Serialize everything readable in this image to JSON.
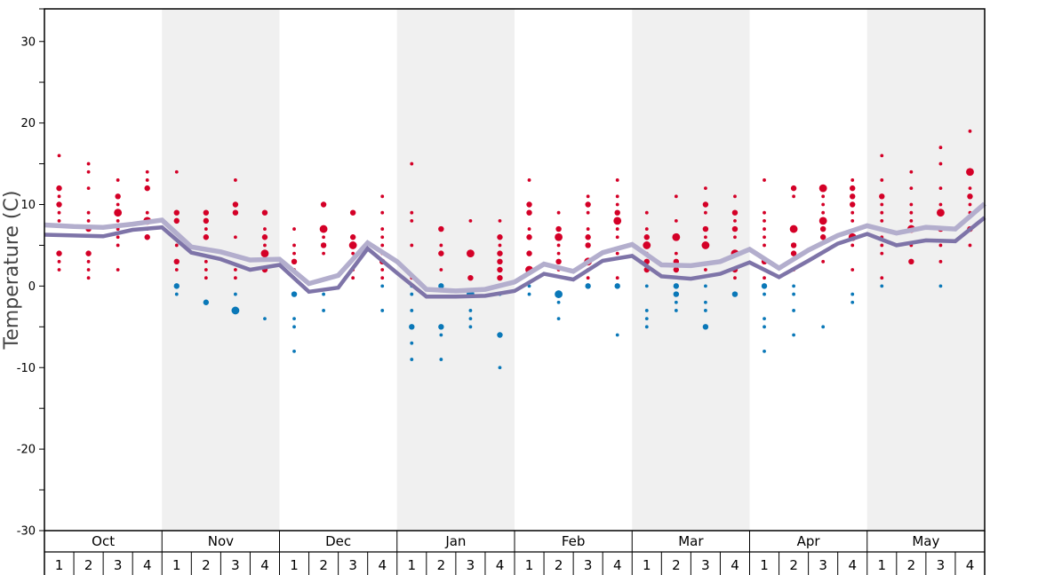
{
  "chart_data": {
    "type": "line",
    "title": "",
    "ylabel": "Temperature (C)",
    "xlabel": "",
    "ylim": [
      -30,
      34
    ],
    "yticks": [
      -30,
      -20,
      -10,
      0,
      10,
      20,
      30
    ],
    "grid": false,
    "months": [
      "Oct",
      "Nov",
      "Dec",
      "Jan",
      "Feb",
      "Mar",
      "Apr",
      "May"
    ],
    "weeks": [
      "1",
      "2",
      "3",
      "4"
    ],
    "colors": {
      "warm": "#d40027",
      "cold": "#0a78b8",
      "light_line": "#b3aecd",
      "dark_line": "#7e74a8",
      "band": "#f0f0f0"
    },
    "series": [
      {
        "name": "light",
        "values": [
          7.5,
          7.3,
          7.2,
          7.6,
          8.1,
          4.8,
          4.2,
          3.2,
          3.3,
          0.3,
          1.3,
          5.3,
          3.0,
          -0.4,
          -0.6,
          -0.4,
          0.5,
          2.7,
          1.8,
          4.1,
          5.1,
          2.6,
          2.5,
          3.0,
          4.5,
          2.2,
          4.4,
          6.2,
          7.4,
          6.5,
          7.2,
          7.0,
          10.1
        ]
      },
      {
        "name": "dark",
        "values": [
          6.3,
          6.2,
          6.1,
          6.9,
          7.2,
          4.1,
          3.3,
          2.0,
          2.6,
          -0.7,
          -0.2,
          4.6,
          1.6,
          -1.3,
          -1.3,
          -1.2,
          -0.6,
          1.5,
          0.8,
          3.1,
          3.7,
          1.2,
          0.9,
          1.5,
          2.9,
          1.1,
          3.1,
          5.2,
          6.4,
          5.0,
          5.6,
          5.5,
          8.4
        ]
      }
    ],
    "observations": [
      [
        [
          16,
          1
        ],
        [
          12,
          2
        ],
        [
          11,
          1
        ],
        [
          10,
          2
        ],
        [
          9,
          1
        ],
        [
          8,
          1
        ],
        [
          4,
          2
        ],
        [
          3,
          1
        ],
        [
          2,
          1
        ]
      ],
      [
        [
          15,
          1
        ],
        [
          14,
          1
        ],
        [
          12,
          1
        ],
        [
          9,
          1
        ],
        [
          8,
          1
        ],
        [
          7,
          2
        ],
        [
          4,
          2
        ],
        [
          3,
          1
        ],
        [
          2,
          1
        ],
        [
          1,
          1
        ]
      ],
      [
        [
          13,
          1
        ],
        [
          11,
          2
        ],
        [
          10,
          1
        ],
        [
          9,
          3
        ],
        [
          8,
          1
        ],
        [
          7,
          1
        ],
        [
          6,
          1
        ],
        [
          5,
          1
        ],
        [
          2,
          1
        ]
      ],
      [
        [
          14,
          1
        ],
        [
          13,
          1
        ],
        [
          12,
          2
        ],
        [
          9,
          1
        ],
        [
          8,
          3
        ],
        [
          7,
          1
        ],
        [
          6,
          2
        ]
      ],
      [
        [
          14,
          1
        ],
        [
          9,
          2
        ],
        [
          8,
          2
        ],
        [
          5,
          1
        ],
        [
          3,
          2
        ],
        [
          2,
          1
        ],
        [
          0,
          2
        ],
        [
          -1,
          1
        ]
      ],
      [
        [
          9,
          2
        ],
        [
          8,
          2
        ],
        [
          7,
          1
        ],
        [
          6,
          2
        ],
        [
          3,
          1
        ],
        [
          2,
          1
        ],
        [
          1,
          1
        ],
        [
          -2,
          2
        ]
      ],
      [
        [
          13,
          1
        ],
        [
          10,
          2
        ],
        [
          9,
          2
        ],
        [
          6,
          1
        ],
        [
          2,
          1
        ],
        [
          1,
          1
        ],
        [
          -1,
          1
        ],
        [
          -3,
          3
        ]
      ],
      [
        [
          9,
          2
        ],
        [
          7,
          1
        ],
        [
          6,
          2
        ],
        [
          5,
          1
        ],
        [
          4,
          3
        ],
        [
          2,
          2
        ],
        [
          -4,
          1
        ]
      ],
      [
        [
          7,
          1
        ],
        [
          5,
          1
        ],
        [
          4,
          1
        ],
        [
          3,
          2
        ],
        [
          2,
          1
        ],
        [
          -1,
          2
        ],
        [
          -4,
          1
        ],
        [
          -5,
          1
        ],
        [
          -8,
          1
        ]
      ],
      [
        [
          10,
          2
        ],
        [
          7,
          3
        ],
        [
          6,
          1
        ],
        [
          5,
          2
        ],
        [
          4,
          1
        ],
        [
          -1,
          1
        ],
        [
          -3,
          1
        ]
      ],
      [
        [
          9,
          2
        ],
        [
          6,
          2
        ],
        [
          5,
          3
        ],
        [
          4,
          1
        ],
        [
          2,
          1
        ],
        [
          1,
          1
        ]
      ],
      [
        [
          11,
          1
        ],
        [
          9,
          1
        ],
        [
          7,
          1
        ],
        [
          6,
          1
        ],
        [
          5,
          1
        ],
        [
          4,
          1
        ],
        [
          3,
          2
        ],
        [
          2,
          1
        ],
        [
          1,
          1
        ],
        [
          0,
          1
        ],
        [
          -3,
          1
        ]
      ],
      [
        [
          15,
          1
        ],
        [
          9,
          1
        ],
        [
          8,
          1
        ],
        [
          5,
          1
        ],
        [
          1,
          1
        ],
        [
          0,
          1
        ],
        [
          -1,
          1
        ],
        [
          -3,
          1
        ],
        [
          -5,
          2
        ],
        [
          -7,
          1
        ],
        [
          -9,
          1
        ]
      ],
      [
        [
          7,
          2
        ],
        [
          5,
          1
        ],
        [
          4,
          2
        ],
        [
          2,
          1
        ],
        [
          0,
          2
        ],
        [
          -5,
          2
        ],
        [
          -6,
          1
        ],
        [
          -9,
          1
        ]
      ],
      [
        [
          8,
          1
        ],
        [
          4,
          3
        ],
        [
          1,
          2
        ],
        [
          -1,
          3
        ],
        [
          -3,
          1
        ],
        [
          -4,
          1
        ],
        [
          -5,
          1
        ]
      ],
      [
        [
          8,
          1
        ],
        [
          6,
          2
        ],
        [
          5,
          1
        ],
        [
          4,
          2
        ],
        [
          3,
          2
        ],
        [
          2,
          2
        ],
        [
          1,
          2
        ],
        [
          -1,
          1
        ],
        [
          -6,
          2
        ],
        [
          -10,
          1
        ]
      ],
      [
        [
          13,
          1
        ],
        [
          10,
          2
        ],
        [
          9,
          2
        ],
        [
          7,
          1
        ],
        [
          6,
          2
        ],
        [
          4,
          2
        ],
        [
          2,
          3
        ],
        [
          0,
          1
        ],
        [
          -1,
          1
        ]
      ],
      [
        [
          9,
          1
        ],
        [
          7,
          2
        ],
        [
          6,
          3
        ],
        [
          5,
          1
        ],
        [
          4,
          1
        ],
        [
          3,
          2
        ],
        [
          2,
          1
        ],
        [
          -1,
          3
        ],
        [
          -2,
          1
        ],
        [
          -4,
          1
        ]
      ],
      [
        [
          11,
          1
        ],
        [
          10,
          2
        ],
        [
          9,
          1
        ],
        [
          7,
          1
        ],
        [
          6,
          2
        ],
        [
          5,
          2
        ],
        [
          3,
          3
        ],
        [
          2,
          1
        ],
        [
          1,
          1
        ],
        [
          0,
          2
        ]
      ],
      [
        [
          13,
          1
        ],
        [
          11,
          1
        ],
        [
          10,
          1
        ],
        [
          9,
          2
        ],
        [
          8,
          3
        ],
        [
          7,
          1
        ],
        [
          6,
          1
        ],
        [
          4,
          1
        ],
        [
          1,
          1
        ],
        [
          0,
          2
        ],
        [
          -6,
          1
        ]
      ],
      [
        [
          9,
          1
        ],
        [
          7,
          1
        ],
        [
          6,
          2
        ],
        [
          5,
          3
        ],
        [
          4,
          1
        ],
        [
          3,
          2
        ],
        [
          2,
          2
        ],
        [
          0,
          1
        ],
        [
          -3,
          1
        ],
        [
          -4,
          1
        ],
        [
          -5,
          1
        ]
      ],
      [
        [
          11,
          1
        ],
        [
          8,
          1
        ],
        [
          6,
          3
        ],
        [
          4,
          1
        ],
        [
          3,
          2
        ],
        [
          2,
          2
        ],
        [
          0,
          2
        ],
        [
          -1,
          2
        ],
        [
          -2,
          1
        ],
        [
          -3,
          1
        ]
      ],
      [
        [
          12,
          1
        ],
        [
          10,
          2
        ],
        [
          9,
          1
        ],
        [
          7,
          2
        ],
        [
          6,
          1
        ],
        [
          5,
          3
        ],
        [
          2,
          1
        ],
        [
          0,
          1
        ],
        [
          -2,
          1
        ],
        [
          -3,
          1
        ],
        [
          -5,
          2
        ]
      ],
      [
        [
          11,
          1
        ],
        [
          9,
          2
        ],
        [
          8,
          1
        ],
        [
          7,
          2
        ],
        [
          6,
          1
        ],
        [
          4,
          3
        ],
        [
          2,
          2
        ],
        [
          1,
          1
        ],
        [
          -1,
          2
        ]
      ],
      [
        [
          13,
          1
        ],
        [
          9,
          1
        ],
        [
          8,
          1
        ],
        [
          7,
          1
        ],
        [
          6,
          1
        ],
        [
          5,
          1
        ],
        [
          3,
          2
        ],
        [
          2,
          1
        ],
        [
          1,
          1
        ],
        [
          0,
          2
        ],
        [
          -1,
          1
        ],
        [
          -4,
          1
        ],
        [
          -5,
          1
        ],
        [
          -8,
          1
        ]
      ],
      [
        [
          12,
          2
        ],
        [
          11,
          1
        ],
        [
          7,
          3
        ],
        [
          5,
          2
        ],
        [
          4,
          2
        ],
        [
          2,
          1
        ],
        [
          0,
          1
        ],
        [
          -1,
          1
        ],
        [
          -3,
          1
        ],
        [
          -6,
          1
        ]
      ],
      [
        [
          12,
          3
        ],
        [
          11,
          1
        ],
        [
          10,
          1
        ],
        [
          9,
          1
        ],
        [
          8,
          3
        ],
        [
          7,
          2
        ],
        [
          6,
          2
        ],
        [
          3,
          1
        ],
        [
          -5,
          1
        ]
      ],
      [
        [
          13,
          1
        ],
        [
          12,
          2
        ],
        [
          11,
          2
        ],
        [
          10,
          2
        ],
        [
          9,
          1
        ],
        [
          8,
          1
        ],
        [
          6,
          3
        ],
        [
          5,
          1
        ],
        [
          2,
          1
        ],
        [
          -1,
          1
        ],
        [
          -2,
          1
        ]
      ],
      [
        [
          16,
          1
        ],
        [
          13,
          1
        ],
        [
          11,
          2
        ],
        [
          10,
          1
        ],
        [
          9,
          1
        ],
        [
          8,
          1
        ],
        [
          6,
          1
        ],
        [
          5,
          1
        ],
        [
          4,
          1
        ],
        [
          1,
          1
        ],
        [
          0,
          1
        ]
      ],
      [
        [
          14,
          1
        ],
        [
          12,
          1
        ],
        [
          10,
          1
        ],
        [
          9,
          1
        ],
        [
          8,
          1
        ],
        [
          7,
          3
        ],
        [
          5,
          1
        ],
        [
          3,
          2
        ]
      ],
      [
        [
          17,
          1
        ],
        [
          15,
          1
        ],
        [
          12,
          1
        ],
        [
          10,
          1
        ],
        [
          9,
          3
        ],
        [
          7,
          2
        ],
        [
          5,
          1
        ],
        [
          3,
          1
        ],
        [
          0,
          1
        ]
      ],
      [
        [
          19,
          1
        ],
        [
          14,
          3
        ],
        [
          12,
          1
        ],
        [
          11,
          2
        ],
        [
          10,
          1
        ],
        [
          9,
          1
        ],
        [
          7,
          2
        ],
        [
          5,
          1
        ]
      ]
    ]
  }
}
